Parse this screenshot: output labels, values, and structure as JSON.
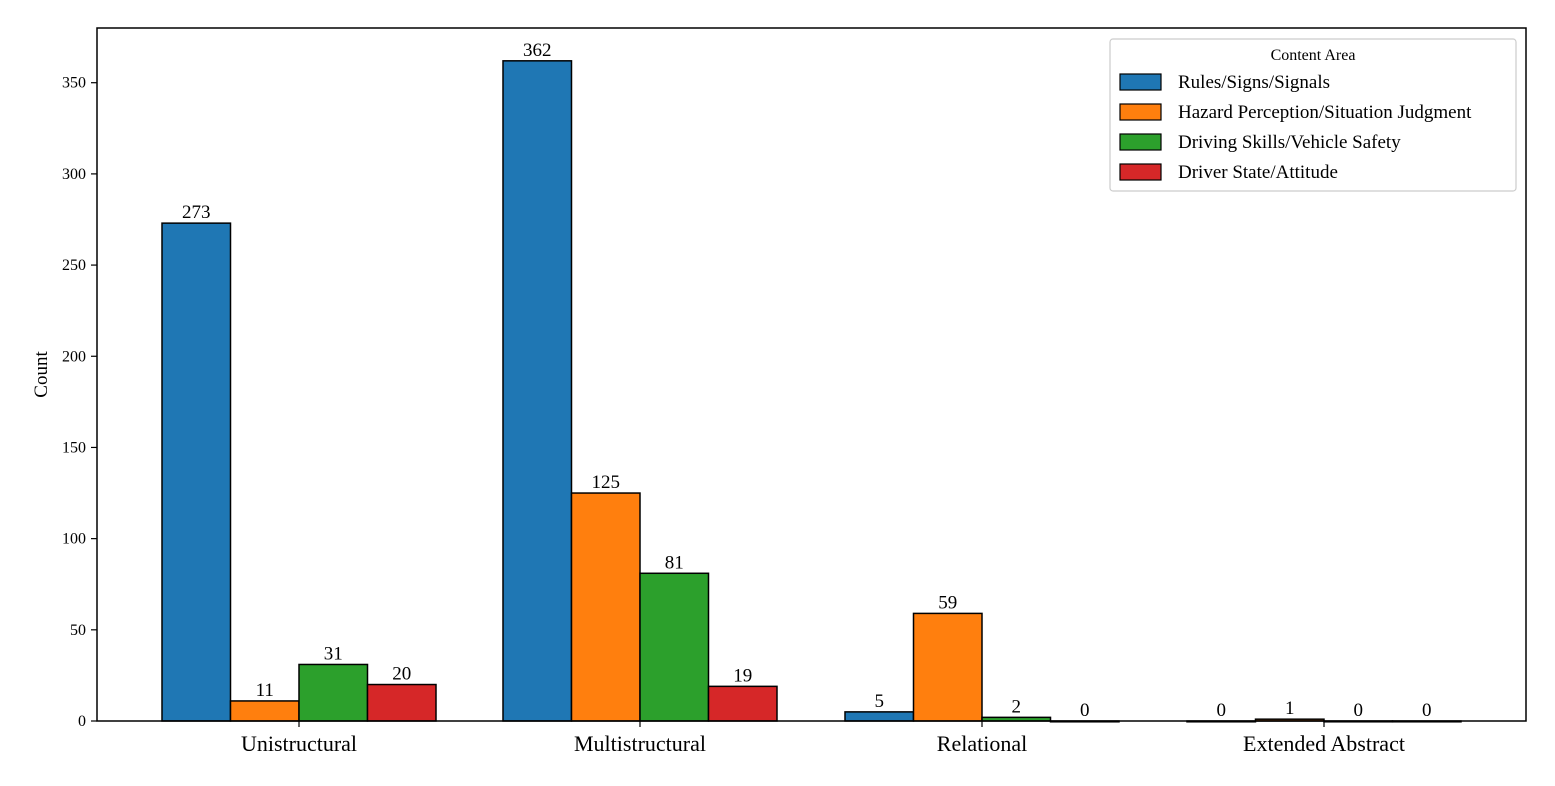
{
  "chart_data": {
    "type": "bar",
    "title": "",
    "xlabel": "",
    "ylabel": "Count",
    "ylim": [
      0,
      380
    ],
    "yticks": [
      0,
      50,
      100,
      150,
      200,
      250,
      300,
      350
    ],
    "categories": [
      "Unistructural",
      "Multistructural",
      "Relational",
      "Extended Abstract"
    ],
    "legend": {
      "title": "Content Area",
      "placement": "top-right"
    },
    "grid": false,
    "series": [
      {
        "name": "Rules/Signs/Signals",
        "color": "#1f77b4",
        "values": [
          273,
          362,
          5,
          0
        ]
      },
      {
        "name": "Hazard Perception/Situation Judgment",
        "color": "#ff7f0e",
        "values": [
          11,
          125,
          59,
          1
        ]
      },
      {
        "name": "Driving Skills/Vehicle Safety",
        "color": "#2ca02c",
        "values": [
          31,
          81,
          2,
          0
        ]
      },
      {
        "name": "Driver State/Attitude",
        "color": "#d62728",
        "values": [
          20,
          19,
          0,
          0
        ]
      }
    ]
  }
}
